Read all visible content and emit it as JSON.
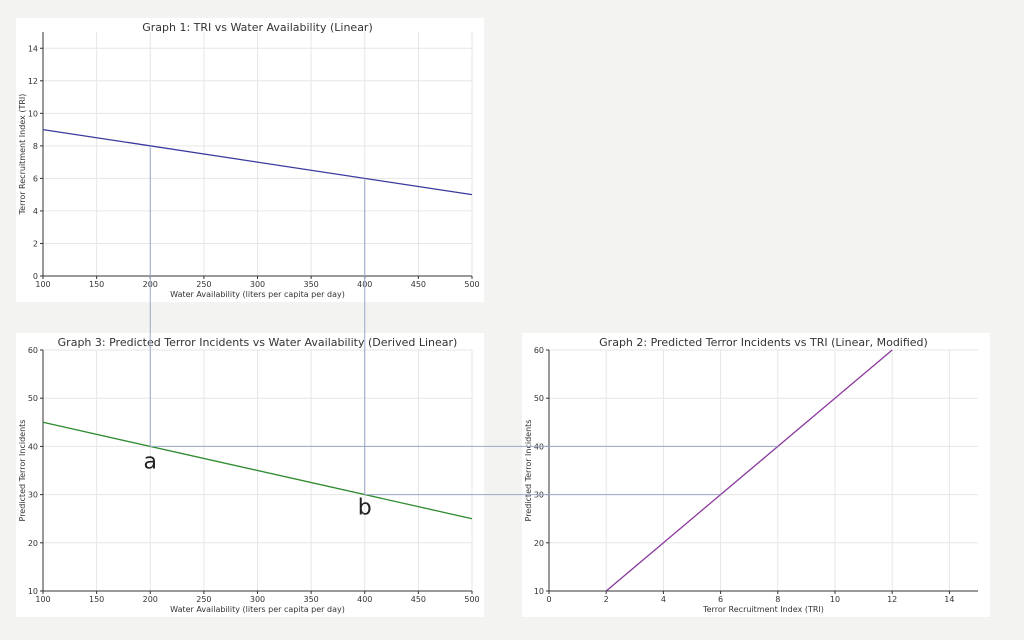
{
  "chart_data": [
    {
      "id": "graph1",
      "type": "line",
      "title": "Graph 1: TRI vs Water Availability (Linear)",
      "xlabel": "Water Availability (liters per capita per day)",
      "ylabel": "Terror Recruitment Index (TRI)",
      "xlim": [
        100,
        500
      ],
      "ylim": [
        0,
        15
      ],
      "xticks": [
        100,
        150,
        200,
        250,
        300,
        350,
        400,
        450,
        500
      ],
      "yticks": [
        0,
        2,
        4,
        6,
        8,
        10,
        12,
        14
      ],
      "grid": true,
      "series": [
        {
          "x": [
            100,
            500
          ],
          "y": [
            9,
            5
          ],
          "color": "#3a3a9e"
        }
      ],
      "guides": [
        {
          "x": [
            200,
            200
          ],
          "y": [
            0,
            8
          ]
        },
        {
          "x": [
            400,
            400
          ],
          "y": [
            0,
            6
          ]
        }
      ]
    },
    {
      "id": "graph3",
      "type": "line",
      "title": "Graph 3: Predicted Terror Incidents vs Water Availability (Derived Linear)",
      "xlabel": "Water Availability (liters per capita per day)",
      "ylabel": "Predicted Terror Incidents",
      "xlim": [
        100,
        500
      ],
      "ylim": [
        10,
        60
      ],
      "xticks": [
        100,
        150,
        200,
        250,
        300,
        350,
        400,
        450,
        500
      ],
      "yticks": [
        10,
        20,
        30,
        40,
        50,
        60
      ],
      "grid": true,
      "series": [
        {
          "x": [
            100,
            500
          ],
          "y": [
            45,
            25
          ],
          "color": "#2e8b2e"
        }
      ],
      "points": [
        {
          "label": "a",
          "x": 200,
          "y": 40
        },
        {
          "label": "b",
          "x": 400,
          "y": 30
        }
      ]
    },
    {
      "id": "graph2",
      "type": "line",
      "title": "Graph 2: Predicted Terror Incidents vs TRI (Linear, Modified)",
      "xlabel": "Terror Recruitment Index (TRI)",
      "ylabel": "Predicted Terror Incidents",
      "xlim": [
        0,
        15
      ],
      "ylim": [
        10,
        60
      ],
      "xticks": [
        0,
        2,
        4,
        6,
        8,
        10,
        12,
        14
      ],
      "yticks": [
        10,
        20,
        30,
        40,
        50,
        60
      ],
      "grid": true,
      "series": [
        {
          "x": [
            2,
            12
          ],
          "y": [
            10,
            60
          ],
          "color": "#8b3a9e"
        }
      ],
      "guides": [
        {
          "x": [
            0,
            8
          ],
          "y": [
            40,
            40
          ]
        },
        {
          "x": [
            0,
            6
          ],
          "y": [
            30,
            30
          ]
        }
      ]
    }
  ]
}
